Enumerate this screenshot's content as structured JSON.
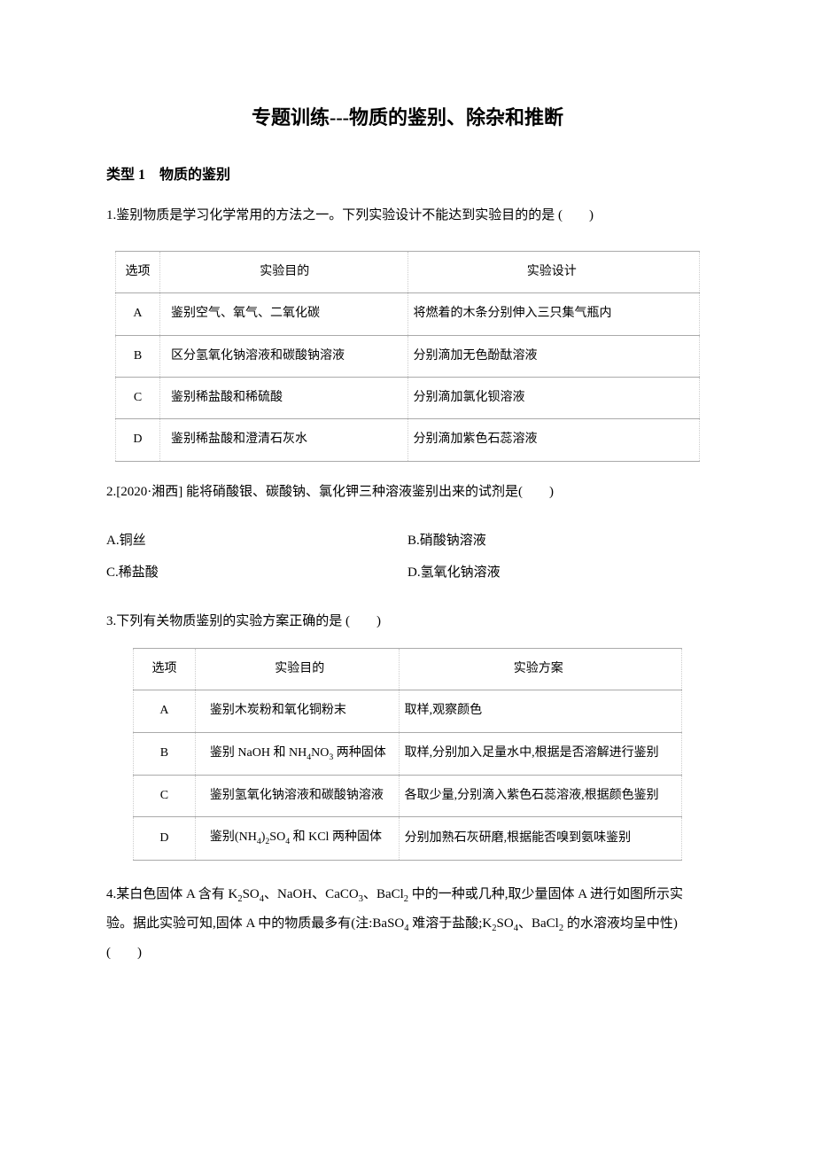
{
  "title": "专题训练---物质的鉴别、除杂和推断",
  "section1": {
    "heading": "类型 1　物质的鉴别"
  },
  "q1": {
    "text": "1.鉴别物质是学习化学常用的方法之一。下列实验设计不能达到实验目的的是 (　　)",
    "table": {
      "headers": {
        "col1": "选项",
        "col2": "实验目的",
        "col3": "实验设计"
      },
      "rows": [
        {
          "opt": "A",
          "purpose": "鉴别空气、氧气、二氧化碳",
          "design": "将燃着的木条分别伸入三只集气瓶内"
        },
        {
          "opt": "B",
          "purpose": "区分氢氧化钠溶液和碳酸钠溶液",
          "design": "分别滴加无色酚酞溶液"
        },
        {
          "opt": "C",
          "purpose": "鉴别稀盐酸和稀硫酸",
          "design": "分别滴加氯化钡溶液"
        },
        {
          "opt": "D",
          "purpose": "鉴别稀盐酸和澄清石灰水",
          "design": "分别滴加紫色石蕊溶液"
        }
      ]
    }
  },
  "q2": {
    "text": "2.[2020·湘西]  能将硝酸银、碳酸钠、氯化钾三种溶液鉴别出来的试剂是(　　)",
    "options": {
      "a": "A.铜丝",
      "b": "B.硝酸钠溶液",
      "c": "C.稀盐酸",
      "d": "D.氢氧化钠溶液"
    }
  },
  "q3": {
    "text": "3.下列有关物质鉴别的实验方案正确的是 (　　)",
    "table": {
      "headers": {
        "col1": "选项",
        "col2": "实验目的",
        "col3": "实验方案"
      },
      "rows": [
        {
          "opt": "A",
          "purpose": "鉴别木炭粉和氧化铜粉末",
          "design": "取样,观察颜色"
        },
        {
          "opt": "B",
          "purpose_html": "鉴别 NaOH 和 NH<sub>4</sub>NO<sub>3</sub> 两种固体",
          "design": "取样,分别加入足量水中,根据是否溶解进行鉴别"
        },
        {
          "opt": "C",
          "purpose": "鉴别氢氧化钠溶液和碳酸钠溶液",
          "design": "各取少量,分别滴入紫色石蕊溶液,根据颜色鉴别"
        },
        {
          "opt": "D",
          "purpose_html": "鉴别(NH<sub>4</sub>)<sub>2</sub>SO<sub>4</sub> 和 KCl 两种固体",
          "design": "分别加熟石灰研磨,根据能否嗅到氨味鉴别"
        }
      ]
    }
  },
  "q4": {
    "text_html": "4.某白色固体 A 含有 K<sub>2</sub>SO<sub>4</sub>、NaOH、CaCO<sub>3</sub>、BaCl<sub>2</sub> 中的一种或几种,取少量固体 A 进行如图所示实验。据此实验可知,固体 A 中的物质最多有(注:BaSO<sub>4</sub> 难溶于盐酸;K<sub>2</sub>SO<sub>4</sub>、BaCl<sub>2</sub> 的水溶液均呈中性)  (　　)"
  }
}
